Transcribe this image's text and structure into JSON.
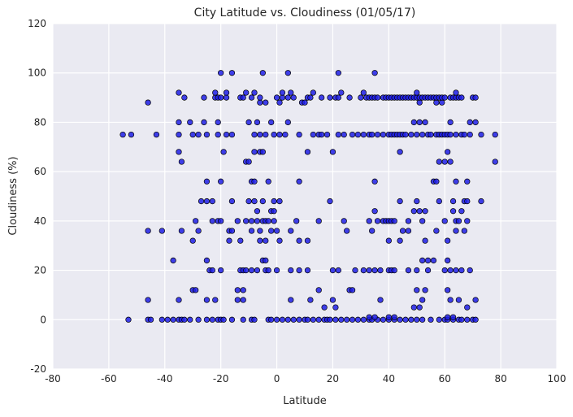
{
  "chart_data": {
    "type": "scatter",
    "title": "City Latitude vs. Cloudiness (01/05/17)",
    "x_label": "Latitude",
    "y_label": "Cloudiness (%)",
    "xlim": [
      -80,
      100
    ],
    "ylim": [
      -20,
      120
    ],
    "xticks": [
      -80,
      -60,
      -40,
      -20,
      0,
      20,
      40,
      60,
      80,
      100
    ],
    "yticks": [
      -20,
      0,
      20,
      40,
      60,
      80,
      100,
      120
    ],
    "grid": true,
    "color": "#1f1fe6",
    "x": [
      -53,
      -46,
      -45,
      -41,
      -39,
      -37,
      -35,
      -34,
      -33,
      -31,
      -28,
      -25,
      -23,
      -21,
      -20,
      -19,
      -16,
      -12,
      -9,
      -8,
      -3,
      -2,
      0,
      2,
      4,
      6,
      8,
      10,
      11,
      13,
      15,
      17,
      18,
      19,
      21,
      23,
      25,
      27,
      29,
      31,
      33,
      34,
      36,
      38,
      40,
      42,
      44,
      46,
      48,
      50,
      52,
      55,
      58,
      60,
      61,
      63,
      65,
      66,
      68,
      70,
      71,
      33,
      35,
      40,
      42,
      61,
      63,
      17,
      21,
      49,
      51,
      68,
      -46,
      -35,
      -25,
      -22,
      -14,
      -12,
      5,
      12,
      20,
      37,
      52,
      62,
      65,
      71,
      -30,
      -29,
      -14,
      -12,
      15,
      26,
      27,
      50,
      53,
      61,
      -24,
      -23,
      -20,
      -13,
      -12,
      -11,
      -9,
      -7,
      -4,
      -3,
      0,
      5,
      8,
      11,
      20,
      22,
      28,
      31,
      33,
      35,
      37,
      40,
      41,
      42,
      47,
      50,
      54,
      60,
      62,
      64,
      66,
      69,
      -37,
      -25,
      -5,
      -4,
      52,
      54,
      56,
      61,
      -30,
      -17,
      -13,
      -6,
      -4,
      1,
      8,
      11,
      40,
      44,
      53,
      61,
      -46,
      -41,
      -34,
      -28,
      -17,
      -16,
      -9,
      -6,
      -2,
      0,
      5,
      25,
      34,
      45,
      47,
      57,
      64,
      67,
      -29,
      -23,
      -21,
      -20,
      -14,
      -11,
      -9,
      -7,
      -5,
      -4,
      -3,
      -1,
      7,
      15,
      24,
      33,
      36,
      38,
      39,
      40,
      41,
      42,
      47,
      52,
      60,
      64,
      65,
      68,
      -7,
      -2,
      -1,
      35,
      49,
      51,
      53,
      63,
      66,
      -27,
      -25,
      -23,
      -16,
      -10,
      -8,
      -5,
      -1,
      1,
      19,
      44,
      50,
      58,
      63,
      67,
      68,
      73,
      -25,
      -20,
      -9,
      -8,
      -3,
      8,
      35,
      56,
      57,
      64,
      68,
      -34,
      -11,
      -10,
      58,
      60,
      62,
      78,
      -35,
      -19,
      -8,
      -6,
      -5,
      11,
      20,
      44,
      61,
      -55,
      -52,
      -43,
      -35,
      -30,
      -28,
      -25,
      -21,
      -18,
      -16,
      -8,
      -6,
      -4,
      -1,
      1,
      3,
      8,
      13,
      15,
      16,
      18,
      22,
      24,
      27,
      29,
      31,
      33,
      34,
      36,
      38,
      40,
      41,
      42,
      43,
      44,
      45,
      46,
      48,
      50,
      52,
      54,
      55,
      57,
      58,
      59,
      60,
      61,
      62,
      64,
      66,
      67,
      69,
      73,
      78,
      -35,
      -31,
      -26,
      -21,
      -10,
      -7,
      -2,
      4,
      49,
      51,
      53,
      62,
      69,
      71,
      -46,
      -6,
      -4,
      1,
      9,
      10,
      51,
      57,
      59,
      -33,
      -26,
      -22,
      -21,
      -20,
      -18,
      -13,
      -12,
      -9,
      -6,
      0,
      2,
      4,
      6,
      11,
      12,
      16,
      19,
      21,
      22,
      26,
      30,
      32,
      33,
      34,
      35,
      36,
      38,
      39,
      40,
      41,
      42,
      43,
      44,
      45,
      46,
      47,
      48,
      49,
      50,
      51,
      52,
      53,
      54,
      55,
      56,
      57,
      58,
      59,
      60,
      62,
      63,
      64,
      65,
      66,
      70,
      71,
      -35,
      -22,
      -18,
      -11,
      -8,
      2,
      5,
      13,
      23,
      31,
      50,
      64,
      -20,
      -16,
      -5,
      4,
      22,
      35
    ],
    "values": [
      0,
      0,
      0,
      0,
      0,
      0,
      0,
      0,
      0,
      0,
      0,
      0,
      0,
      0,
      0,
      0,
      0,
      0,
      0,
      0,
      0,
      0,
      0,
      0,
      0,
      0,
      0,
      0,
      0,
      0,
      0,
      0,
      0,
      0,
      0,
      0,
      0,
      0,
      0,
      0,
      0,
      0,
      0,
      0,
      0,
      0,
      0,
      0,
      0,
      0,
      0,
      0,
      0,
      0,
      0,
      0,
      0,
      0,
      0,
      0,
      0,
      1,
      1,
      1,
      1,
      1,
      1,
      5,
      5,
      5,
      5,
      5,
      8,
      8,
      8,
      8,
      8,
      8,
      8,
      8,
      8,
      8,
      8,
      8,
      8,
      8,
      12,
      12,
      12,
      12,
      12,
      12,
      12,
      12,
      12,
      12,
      20,
      20,
      20,
      20,
      20,
      20,
      20,
      20,
      20,
      20,
      20,
      20,
      20,
      20,
      20,
      20,
      20,
      20,
      20,
      20,
      20,
      20,
      20,
      20,
      20,
      20,
      20,
      20,
      20,
      20,
      20,
      20,
      24,
      24,
      24,
      24,
      24,
      24,
      24,
      24,
      32,
      32,
      32,
      32,
      32,
      32,
      32,
      32,
      32,
      32,
      32,
      32,
      36,
      36,
      36,
      36,
      36,
      36,
      36,
      36,
      36,
      36,
      36,
      36,
      36,
      36,
      36,
      36,
      36,
      36,
      40,
      40,
      40,
      40,
      40,
      40,
      40,
      40,
      40,
      40,
      40,
      40,
      40,
      40,
      40,
      40,
      40,
      40,
      40,
      40,
      40,
      40,
      40,
      40,
      40,
      40,
      40,
      40,
      44,
      44,
      44,
      44,
      44,
      44,
      44,
      44,
      44,
      48,
      48,
      48,
      48,
      48,
      48,
      48,
      48,
      48,
      48,
      48,
      48,
      48,
      48,
      48,
      48,
      48,
      56,
      56,
      56,
      56,
      56,
      56,
      56,
      56,
      56,
      56,
      56,
      64,
      64,
      64,
      64,
      64,
      64,
      64,
      68,
      68,
      68,
      68,
      68,
      68,
      68,
      68,
      68,
      75,
      75,
      75,
      75,
      75,
      75,
      75,
      75,
      75,
      75,
      75,
      75,
      75,
      75,
      75,
      75,
      75,
      75,
      75,
      75,
      75,
      75,
      75,
      75,
      75,
      75,
      75,
      75,
      75,
      75,
      75,
      75,
      75,
      75,
      75,
      75,
      75,
      75,
      75,
      75,
      75,
      75,
      75,
      75,
      75,
      75,
      75,
      75,
      75,
      75,
      75,
      75,
      75,
      75,
      80,
      80,
      80,
      80,
      80,
      80,
      80,
      80,
      80,
      80,
      80,
      80,
      80,
      80,
      88,
      88,
      88,
      88,
      88,
      88,
      88,
      88,
      88,
      90,
      90,
      90,
      90,
      90,
      90,
      90,
      90,
      90,
      90,
      90,
      90,
      90,
      90,
      90,
      90,
      90,
      90,
      90,
      90,
      90,
      90,
      90,
      90,
      90,
      90,
      90,
      90,
      90,
      90,
      90,
      90,
      90,
      90,
      90,
      90,
      90,
      90,
      90,
      90,
      90,
      90,
      90,
      90,
      90,
      90,
      90,
      90,
      90,
      90,
      90,
      90,
      90,
      90,
      90,
      90,
      90,
      92,
      92,
      92,
      92,
      92,
      92,
      92,
      92,
      92,
      92,
      92,
      92,
      100,
      100,
      100,
      100,
      100,
      100
    ]
  }
}
